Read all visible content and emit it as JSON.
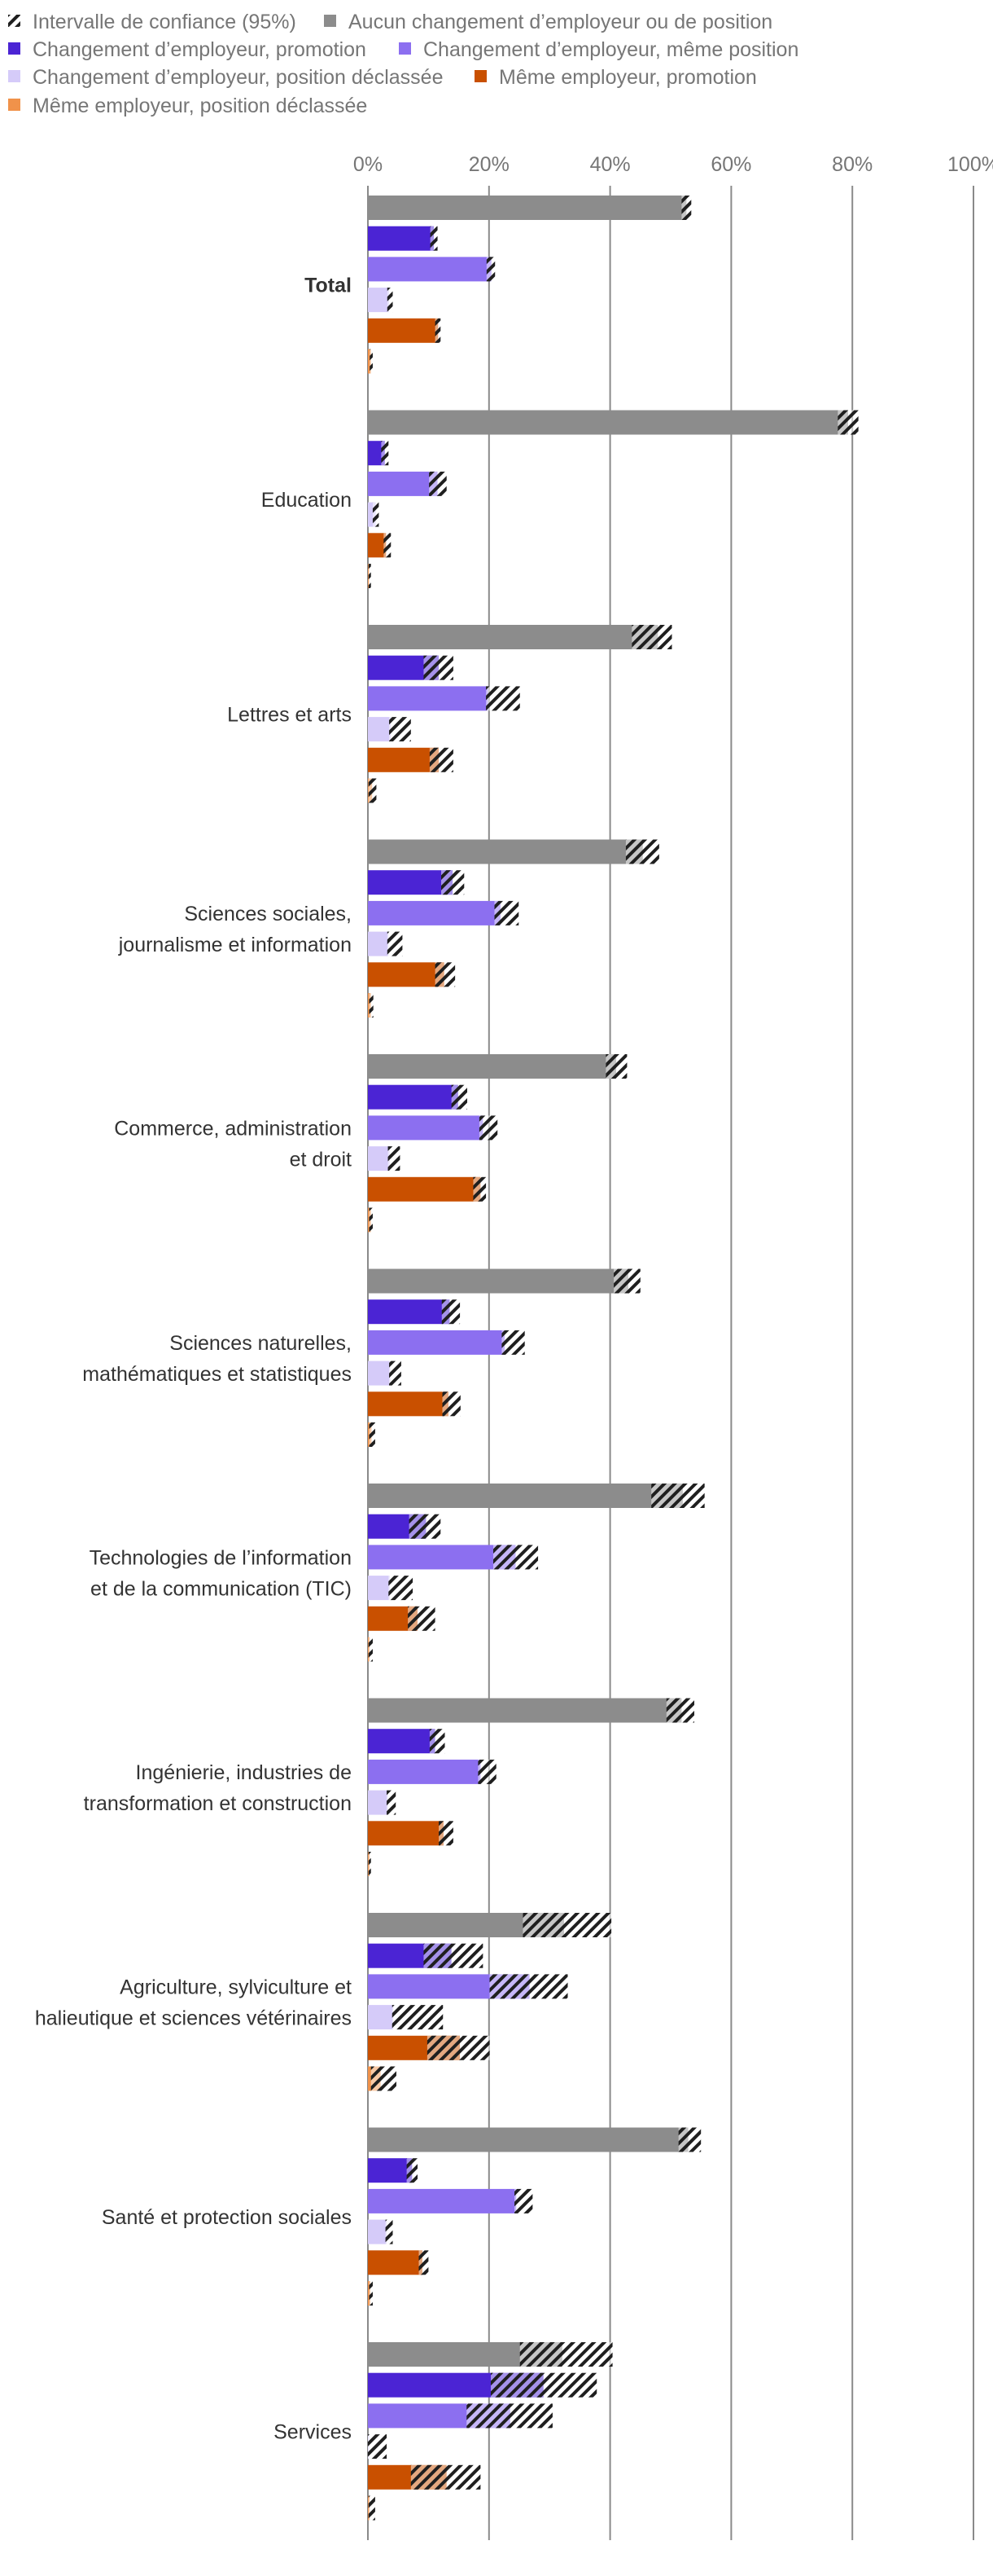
{
  "chart_data": {
    "type": "bar",
    "orientation": "horizontal",
    "title": "",
    "xlabel": "",
    "ylabel": "",
    "xlim": [
      0,
      100
    ],
    "x_ticks": [
      0,
      20,
      40,
      60,
      80,
      100
    ],
    "x_tick_labels": [
      "0%",
      "20%",
      "40%",
      "60%",
      "80%",
      "100%"
    ],
    "grid": true,
    "legend_position": "top-left",
    "ci_legend_label": "Intervalle de confiance (95%)",
    "categories": [
      "Total",
      "Education",
      "Lettres et arts",
      "Sciences sociales, journalisme et information",
      "Commerce, administration et droit",
      "Sciences naturelles, mathématiques et statistiques",
      "Technologies de l’information et de la communication (TIC)",
      "Ingénierie, industries de transformation et construction",
      "Agriculture, sylviculture et halieutique et sciences vétérinaires",
      "Santé et protection sociales",
      "Services"
    ],
    "category_lines": [
      [
        "Total"
      ],
      [
        "Education"
      ],
      [
        "Lettres et arts"
      ],
      [
        "Sciences sociales,",
        "journalisme et information"
      ],
      [
        "Commerce, administration",
        "et droit"
      ],
      [
        "Sciences naturelles,",
        "mathématiques et statistiques"
      ],
      [
        "Technologies de l’information",
        "et de la communication (TIC)"
      ],
      [
        "Ingénierie, industries de",
        "transformation et construction"
      ],
      [
        "Agriculture, sylviculture et",
        "halieutique et sciences vétérinaires"
      ],
      [
        "Santé et protection sociales"
      ],
      [
        "Services"
      ]
    ],
    "bold_categories": [
      "Total"
    ],
    "series": [
      {
        "name": "Aucun changement d’employeur ou de position",
        "color": "#8c8c8c",
        "values": [
          52.6,
          79.3,
          47.9,
          45.4,
          41.0,
          43.0,
          52.0,
          51.8,
          32.4,
          52.9,
          32.1
        ],
        "ci_low": [
          51.8,
          77.6,
          43.6,
          42.6,
          39.3,
          40.6,
          46.8,
          49.3,
          25.6,
          51.3,
          25.1
        ],
        "ci_high": [
          53.4,
          81.0,
          50.2,
          48.1,
          42.8,
          45.0,
          55.6,
          53.9,
          40.2,
          55.0,
          40.4
        ]
      },
      {
        "name": "Changement d’employeur, promotion",
        "color": "#4b24d4",
        "values": [
          10.9,
          2.8,
          11.7,
          14.0,
          14.9,
          13.5,
          9.6,
          11.1,
          13.8,
          7.3,
          29.0
        ],
        "ci_low": [
          10.3,
          2.2,
          9.2,
          12.1,
          13.8,
          12.2,
          6.8,
          10.2,
          9.2,
          6.4,
          20.3
        ],
        "ci_high": [
          11.5,
          3.4,
          14.1,
          15.9,
          16.4,
          15.2,
          12.0,
          12.7,
          19.0,
          8.2,
          37.8
        ]
      },
      {
        "name": "Changement d’employeur, même position",
        "color": "#8c6ff0",
        "values": [
          20.4,
          11.5,
          19.8,
          21.9,
          19.0,
          22.6,
          24.4,
          18.6,
          26.7,
          24.5,
          23.5
        ],
        "ci_low": [
          19.6,
          10.1,
          19.5,
          20.9,
          18.4,
          22.1,
          20.7,
          18.2,
          20.1,
          24.2,
          16.3
        ],
        "ci_high": [
          21.0,
          13.0,
          25.1,
          24.9,
          21.4,
          25.9,
          28.1,
          21.2,
          33.0,
          27.2,
          30.5
        ]
      },
      {
        "name": "Changement d’employeur, position déclassée",
        "color": "#d5cbf9",
        "values": [
          3.5,
          1.3,
          3.8,
          3.4,
          3.6,
          3.7,
          3.6,
          3.3,
          4.2,
          3.1,
          0.2
        ],
        "ci_low": [
          3.2,
          0.8,
          3.5,
          3.2,
          3.3,
          3.5,
          3.4,
          3.1,
          4.0,
          2.9,
          0.0
        ],
        "ci_high": [
          4.1,
          1.8,
          7.1,
          5.7,
          5.3,
          5.5,
          7.4,
          4.6,
          12.4,
          4.1,
          3.1
        ]
      },
      {
        "name": "Même employeur, promotion",
        "color": "#c95000",
        "values": [
          11.6,
          3.0,
          11.7,
          12.6,
          18.6,
          13.3,
          8.2,
          12.5,
          15.2,
          9.0,
          13.0
        ],
        "ci_low": [
          11.1,
          2.6,
          10.2,
          11.1,
          17.4,
          12.3,
          6.6,
          11.7,
          9.8,
          8.4,
          7.1
        ],
        "ci_high": [
          12.0,
          3.8,
          14.1,
          14.4,
          19.5,
          15.3,
          11.1,
          14.1,
          20.1,
          10.0,
          18.6
        ]
      },
      {
        "name": "Même employeur, position déclassée",
        "color": "#f0924a",
        "values": [
          0.5,
          0.2,
          0.7,
          0.5,
          0.5,
          0.6,
          0.3,
          0.3,
          2.1,
          0.4,
          0.3
        ],
        "ci_low": [
          0.3,
          0.1,
          0.1,
          0.2,
          0.2,
          0.2,
          0.1,
          0.1,
          0.5,
          0.2,
          0.1
        ],
        "ci_high": [
          0.8,
          0.4,
          1.4,
          0.9,
          0.8,
          1.2,
          0.8,
          0.5,
          4.7,
          0.8,
          1.2
        ]
      }
    ]
  }
}
